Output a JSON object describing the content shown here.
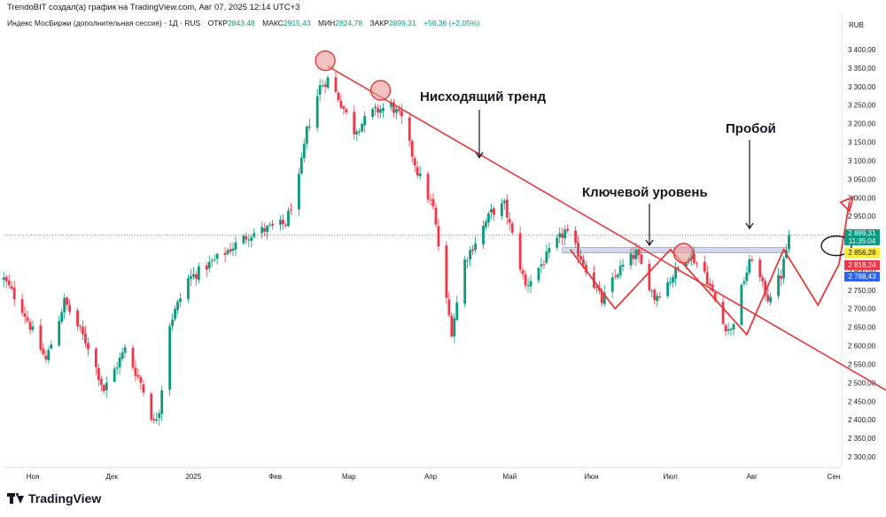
{
  "header": {
    "credit": "TrendoBIT создал(а) график на TradingView.com, Авг 07, 2025 12:14 UTC+3",
    "instrument": "Индекс МосБиржи (дополнительная сессия) · 1Д · RUS",
    "open_label": "ОТКР",
    "open_value": "2843,48",
    "high_label": "МАКС",
    "high_value": "2915,43",
    "low_label": "МИН",
    "low_value": "2824,78",
    "close_label": "ЗАКР",
    "close_value": "2899,31",
    "change": "+58,36 (+2,05%)"
  },
  "currency": "RUB",
  "price_tags": {
    "last": "2 899,31",
    "countdown": "11:35:04",
    "level_yellow": "2 856,28",
    "level_red": "2 818,24",
    "level_blue": "2 788,43"
  },
  "footer": {
    "logo_text": "TradingView",
    "logo_icon": "tradingview-logo-icon"
  },
  "colors": {
    "up": "#089981",
    "down": "#f23645",
    "annotation": "#e53935",
    "zone": "#9fa8da"
  },
  "chart_data": {
    "type": "candlestick",
    "y_ticks": [
      "3 400,00",
      "3 350,00",
      "3 300,00",
      "3 250,00",
      "3 200,00",
      "3 150,00",
      "3 100,00",
      "3 050,00",
      "3 000,00",
      "2 950,00",
      "2 900,00",
      "2 850,00",
      "2 800,00",
      "2 750,00",
      "2 700,00",
      "2 650,00",
      "2 600,00",
      "2 550,00",
      "2 500,00",
      "2 450,00",
      "2 400,00",
      "2 350,00",
      "2 300,00"
    ],
    "ylim": [
      2280,
      3440
    ],
    "x_ticks": [
      {
        "label": "Ноя",
        "date": "2024-11-01"
      },
      {
        "label": "Дек",
        "date": "2024-12-01"
      },
      {
        "label": "2025",
        "date": "2025-01-01"
      },
      {
        "label": "Фев",
        "date": "2025-02-01"
      },
      {
        "label": "Мар",
        "date": "2025-03-01"
      },
      {
        "label": "Апр",
        "date": "2025-04-01"
      },
      {
        "label": "Май",
        "date": "2025-05-01"
      },
      {
        "label": "Июн",
        "date": "2025-06-01"
      },
      {
        "label": "Июл",
        "date": "2025-07-01"
      },
      {
        "label": "Авг",
        "date": "2025-08-01"
      },
      {
        "label": "Сен",
        "date": "2025-09-01"
      }
    ],
    "anchors": [
      {
        "date": "2024-10-21",
        "price": 2780
      },
      {
        "date": "2024-10-28",
        "price": 2700
      },
      {
        "date": "2024-11-06",
        "price": 2560
      },
      {
        "date": "2024-11-13",
        "price": 2720
      },
      {
        "date": "2024-11-22",
        "price": 2600
      },
      {
        "date": "2024-11-28",
        "price": 2480
      },
      {
        "date": "2024-12-06",
        "price": 2590
      },
      {
        "date": "2024-12-12",
        "price": 2500
      },
      {
        "date": "2024-12-17",
        "price": 2390
      },
      {
        "date": "2024-12-19",
        "price": 2430
      },
      {
        "date": "2024-12-23",
        "price": 2660
      },
      {
        "date": "2024-12-30",
        "price": 2780
      },
      {
        "date": "2025-01-09",
        "price": 2830
      },
      {
        "date": "2025-01-22",
        "price": 2900
      },
      {
        "date": "2025-01-31",
        "price": 2920
      },
      {
        "date": "2025-02-05",
        "price": 2930
      },
      {
        "date": "2025-02-10",
        "price": 3050
      },
      {
        "date": "2025-02-13",
        "price": 3180
      },
      {
        "date": "2025-02-18",
        "price": 3300
      },
      {
        "date": "2025-02-21",
        "price": 3320
      },
      {
        "date": "2025-02-25",
        "price": 3270
      },
      {
        "date": "2025-03-03",
        "price": 3180
      },
      {
        "date": "2025-03-10",
        "price": 3230
      },
      {
        "date": "2025-03-17",
        "price": 3250
      },
      {
        "date": "2025-03-21",
        "price": 3210
      },
      {
        "date": "2025-03-27",
        "price": 3070
      },
      {
        "date": "2025-04-02",
        "price": 2970
      },
      {
        "date": "2025-04-07",
        "price": 2720
      },
      {
        "date": "2025-04-09",
        "price": 2640
      },
      {
        "date": "2025-04-14",
        "price": 2830
      },
      {
        "date": "2025-04-24",
        "price": 2960
      },
      {
        "date": "2025-04-29",
        "price": 2980
      },
      {
        "date": "2025-05-07",
        "price": 2760
      },
      {
        "date": "2025-05-15",
        "price": 2840
      },
      {
        "date": "2025-05-22",
        "price": 2910
      },
      {
        "date": "2025-05-28",
        "price": 2840
      },
      {
        "date": "2025-06-05",
        "price": 2720
      },
      {
        "date": "2025-06-11",
        "price": 2800
      },
      {
        "date": "2025-06-18",
        "price": 2850
      },
      {
        "date": "2025-06-25",
        "price": 2730
      },
      {
        "date": "2025-07-01",
        "price": 2780
      },
      {
        "date": "2025-07-08",
        "price": 2850
      },
      {
        "date": "2025-07-14",
        "price": 2800
      },
      {
        "date": "2025-07-21",
        "price": 2660
      },
      {
        "date": "2025-07-24",
        "price": 2640
      },
      {
        "date": "2025-07-29",
        "price": 2780
      },
      {
        "date": "2025-08-01",
        "price": 2840
      },
      {
        "date": "2025-08-05",
        "price": 2760
      },
      {
        "date": "2025-08-07",
        "price": 2730
      },
      {
        "date": "2025-08-12",
        "price": 2790
      },
      {
        "date": "2025-08-14",
        "price": 2860
      },
      {
        "date": "2025-08-15",
        "price": 2899
      }
    ],
    "annotations": {
      "trend_label": "Нисходящий тренд",
      "level_label": "Ключевой уровень",
      "breakout_label": "Пробой",
      "trendline": [
        {
          "date": "2025-02-21",
          "price": 3355
        },
        {
          "date": "2025-09-22",
          "price": 2475
        }
      ],
      "key_zone": [
        {
          "date": "2025-05-21",
          "price": 2858
        },
        {
          "date": "2025-08-14",
          "price": 2858
        }
      ],
      "pattern_line": [
        {
          "date": "2025-05-24",
          "price": 2860
        },
        {
          "date": "2025-06-10",
          "price": 2700
        },
        {
          "date": "2025-07-01",
          "price": 2860
        },
        {
          "date": "2025-07-30",
          "price": 2630
        },
        {
          "date": "2025-08-13",
          "price": 2860
        },
        {
          "date": "2025-08-26",
          "price": 2710
        },
        {
          "date": "2025-09-03",
          "price": 2820
        },
        {
          "date": "2025-09-07",
          "price": 2990
        }
      ],
      "circles": [
        {
          "date": "2025-02-20",
          "price": 3370
        },
        {
          "date": "2025-03-13",
          "price": 3290
        },
        {
          "date": "2025-07-06",
          "price": 2850
        }
      ],
      "breakout_ellipse": {
        "date": "2025-09-02",
        "price": 2870
      }
    }
  }
}
